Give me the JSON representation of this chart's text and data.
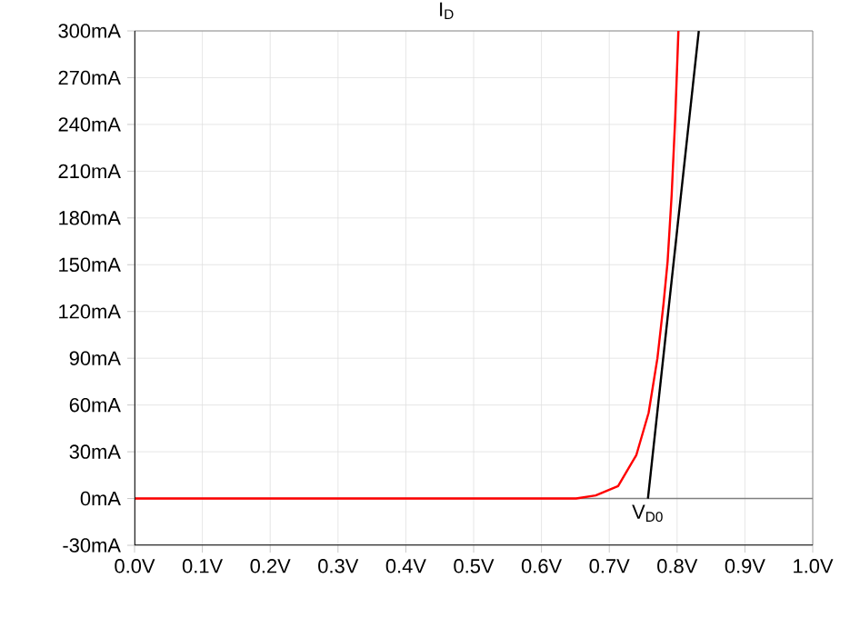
{
  "chart_data": {
    "type": "line",
    "title": "I$_{D}$",
    "series": [
      {
        "color": "#ff0000",
        "x": [
          0,
          0.3,
          0.6,
          0.651,
          0.68,
          0.713,
          0.74,
          0.758,
          0.771,
          0.78,
          0.786,
          0.792,
          0.797,
          0.802
        ],
        "values": [
          0,
          0,
          0,
          0,
          2,
          8,
          28,
          55,
          90,
          125,
          152,
          195,
          242,
          300
        ]
      },
      {
        "color": "#000000",
        "x": [
          0.757,
          0.832
        ],
        "values": [
          0,
          300
        ]
      }
    ],
    "xlim": [
      0,
      1.0
    ],
    "ylim": [
      -30,
      300
    ],
    "xticks": [
      {
        "value": 0,
        "label": "0.0V"
      },
      {
        "value": 0.1,
        "label": "0.1V"
      },
      {
        "value": 0.2,
        "label": "0.2V"
      },
      {
        "value": 0.3,
        "label": "0.3V"
      },
      {
        "value": 0.4,
        "label": "0.4V"
      },
      {
        "value": 0.5,
        "label": "0.5V"
      },
      {
        "value": 0.6,
        "label": "0.6V"
      },
      {
        "value": 0.7,
        "label": "0.7V"
      },
      {
        "value": 0.8,
        "label": "0.8V"
      },
      {
        "value": 0.9,
        "label": "0.9V"
      },
      {
        "value": 1.0,
        "label": "1.0V"
      }
    ],
    "yticks": [
      {
        "value": -30,
        "label": "-30mA"
      },
      {
        "value": 0,
        "label": "0mA"
      },
      {
        "value": 30,
        "label": "30mA"
      },
      {
        "value": 60,
        "label": "60mA"
      },
      {
        "value": 90,
        "label": "90mA"
      },
      {
        "value": 120,
        "label": "120mA"
      },
      {
        "value": 150,
        "label": "150mA"
      },
      {
        "value": 180,
        "label": "180mA"
      },
      {
        "value": 210,
        "label": "210mA"
      },
      {
        "value": 240,
        "label": "240mA"
      },
      {
        "value": 270,
        "label": "270mA"
      },
      {
        "value": 300,
        "label": "300mA"
      }
    ],
    "grid": true,
    "ref_lines": [
      {
        "axis": "y",
        "value": 0,
        "color": "#808080"
      }
    ],
    "annotations": [
      {
        "text": "V$_{D0}$",
        "x": 0.757,
        "y": 0
      }
    ]
  }
}
